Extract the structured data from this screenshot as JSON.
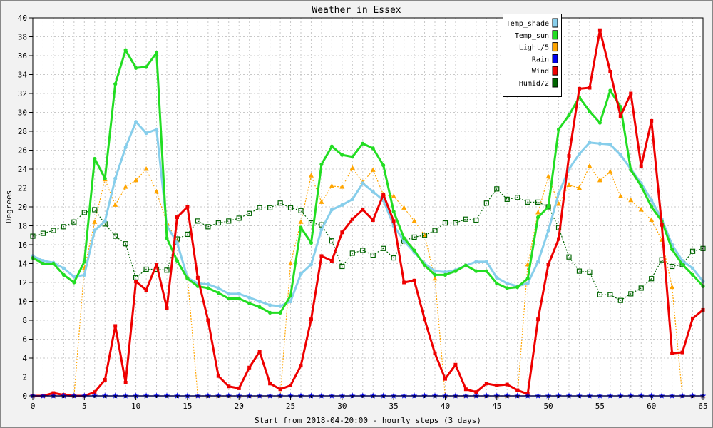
{
  "chart_data": {
    "type": "line",
    "title": "Weather in Essex",
    "xlabel": "Start from 2018-04-20:00 - hourly steps (3 days)",
    "ylabel": "Degrees",
    "xlim": [
      0,
      65
    ],
    "ylim": [
      0,
      40
    ],
    "x_ticks": [
      0,
      5,
      10,
      15,
      20,
      25,
      30,
      35,
      40,
      45,
      50,
      55,
      60,
      65
    ],
    "y_ticks": [
      0,
      2,
      4,
      6,
      8,
      10,
      12,
      14,
      16,
      18,
      20,
      22,
      24,
      26,
      28,
      30,
      32,
      34,
      36,
      38,
      40
    ],
    "grid": true,
    "legend_position": "top-right",
    "x": [
      0,
      1,
      2,
      3,
      4,
      5,
      6,
      7,
      8,
      9,
      10,
      11,
      12,
      13,
      14,
      15,
      16,
      17,
      18,
      19,
      20,
      21,
      22,
      23,
      24,
      25,
      26,
      27,
      28,
      29,
      30,
      31,
      32,
      33,
      34,
      35,
      36,
      37,
      38,
      39,
      40,
      41,
      42,
      43,
      44,
      45,
      46,
      47,
      48,
      49,
      50,
      51,
      52,
      53,
      54,
      55,
      56,
      57,
      58,
      59,
      60,
      61,
      62,
      63,
      64,
      65
    ],
    "series": [
      {
        "name": "Temp_shade",
        "color": "#87ceeb",
        "marker": "circle",
        "values": [
          14.8,
          14.3,
          14.1,
          13.5,
          12.6,
          12.8,
          17.5,
          18.5,
          23.0,
          26.3,
          29.0,
          27.8,
          28.2,
          18.0,
          16.2,
          12.5,
          11.9,
          11.8,
          11.4,
          10.8,
          10.8,
          10.4,
          10.0,
          9.6,
          9.5,
          10.0,
          12.9,
          13.9,
          17.6,
          19.7,
          20.2,
          20.8,
          22.5,
          21.6,
          20.7,
          18.0,
          16.4,
          15.2,
          14.0,
          13.2,
          13.1,
          13.3,
          13.8,
          14.2,
          14.2,
          12.5,
          11.9,
          11.6,
          11.9,
          14.2,
          17.5,
          21.4,
          24.0,
          25.6,
          26.8,
          26.7,
          26.6,
          25.5,
          24.0,
          22.5,
          20.7,
          18.7,
          16.0,
          14.3,
          13.5,
          12.1
        ]
      },
      {
        "name": "Temp_sun",
        "color": "#22dd22",
        "marker": "circle",
        "values": [
          14.6,
          14.0,
          14.0,
          12.8,
          12.0,
          14.2,
          25.1,
          23.0,
          33.0,
          36.6,
          34.7,
          34.8,
          36.3,
          16.7,
          14.3,
          12.4,
          11.6,
          11.4,
          10.9,
          10.3,
          10.3,
          9.8,
          9.4,
          8.8,
          8.8,
          10.6,
          17.8,
          16.2,
          24.5,
          26.4,
          25.5,
          25.3,
          26.7,
          26.2,
          24.4,
          19.5,
          16.7,
          15.4,
          13.8,
          12.8,
          12.8,
          13.2,
          13.8,
          13.2,
          13.2,
          11.9,
          11.4,
          11.5,
          12.4,
          18.9,
          20.0,
          28.2,
          29.7,
          31.6,
          30.1,
          28.9,
          32.3,
          30.6,
          23.9,
          22.2,
          20.0,
          18.5,
          15.5,
          13.9,
          12.8,
          11.6
        ]
      },
      {
        "name": "Light/5",
        "color": "#ffa500",
        "marker": "triangle",
        "values": [
          0,
          0,
          0,
          0,
          0,
          13.5,
          18.4,
          22.9,
          20.2,
          22.1,
          22.8,
          24.0,
          21.6,
          18.3,
          16.4,
          12.6,
          0,
          0,
          0,
          0,
          0,
          0,
          0,
          0,
          0,
          14.0,
          18.4,
          23.3,
          20.5,
          22.2,
          22.1,
          24.1,
          22.6,
          23.9,
          21.3,
          21.1,
          19.9,
          18.5,
          17.0,
          12.4,
          0,
          0,
          0,
          0,
          0,
          0,
          0,
          0,
          13.9,
          19.4,
          23.2,
          20.3,
          22.3,
          22.0,
          24.3,
          22.8,
          23.7,
          21.1,
          20.7,
          19.7,
          18.6,
          16.5,
          11.5,
          0,
          0,
          0
        ]
      },
      {
        "name": "Rain",
        "color": "#0000ee",
        "marker": "star",
        "values": [
          0,
          0,
          0,
          0,
          0,
          0,
          0,
          0,
          0,
          0,
          0,
          0,
          0,
          0,
          0,
          0,
          0,
          0,
          0,
          0,
          0,
          0,
          0,
          0,
          0,
          0,
          0,
          0,
          0,
          0,
          0,
          0,
          0,
          0,
          0,
          0,
          0,
          0,
          0,
          0,
          0,
          0,
          0,
          0,
          0,
          0,
          0,
          0,
          0,
          0,
          0,
          0,
          0,
          0,
          0,
          0,
          0,
          0,
          0,
          0,
          0,
          0,
          0,
          0,
          0,
          0
        ]
      },
      {
        "name": "Wind",
        "color": "#ee0000",
        "marker": "square",
        "values": [
          0,
          0,
          0.3,
          0.1,
          0,
          0,
          0.4,
          1.7,
          7.4,
          1.4,
          12.1,
          11.2,
          13.9,
          9.3,
          18.9,
          20.0,
          12.5,
          8.0,
          2.1,
          1.0,
          0.8,
          3.0,
          4.7,
          1.3,
          0.7,
          1.1,
          3.2,
          8.1,
          14.8,
          14.3,
          17.3,
          18.7,
          19.7,
          18.6,
          21.3,
          18.5,
          12.0,
          12.2,
          8.1,
          4.5,
          1.8,
          3.3,
          0.7,
          0.4,
          1.3,
          1.1,
          1.2,
          0.6,
          0.2,
          8.1,
          13.9,
          16.6,
          25.4,
          32.5,
          32.6,
          38.7,
          34.3,
          29.6,
          32.0,
          24.3,
          29.1,
          18.1,
          4.5,
          4.6,
          8.2,
          9.1
        ]
      },
      {
        "name": "Humid/2",
        "color": "#006400",
        "marker": "open-square",
        "values": [
          16.9,
          17.2,
          17.5,
          17.9,
          18.4,
          19.4,
          19.7,
          18.2,
          16.9,
          16.1,
          12.5,
          13.4,
          13.4,
          13.3,
          16.6,
          17.1,
          18.5,
          17.9,
          18.3,
          18.5,
          18.8,
          19.3,
          19.9,
          19.9,
          20.4,
          19.9,
          19.6,
          18.3,
          18.1,
          16.4,
          13.7,
          15.1,
          15.4,
          14.9,
          15.6,
          14.6,
          16.4,
          16.8,
          17.0,
          17.5,
          18.3,
          18.3,
          18.7,
          18.6,
          20.4,
          21.9,
          20.8,
          21.0,
          20.5,
          20.5,
          20.0,
          17.8,
          14.7,
          13.2,
          13.1,
          10.7,
          10.7,
          10.1,
          10.8,
          11.4,
          12.4,
          14.4,
          13.7,
          13.9,
          15.3,
          15.6
        ]
      }
    ]
  }
}
